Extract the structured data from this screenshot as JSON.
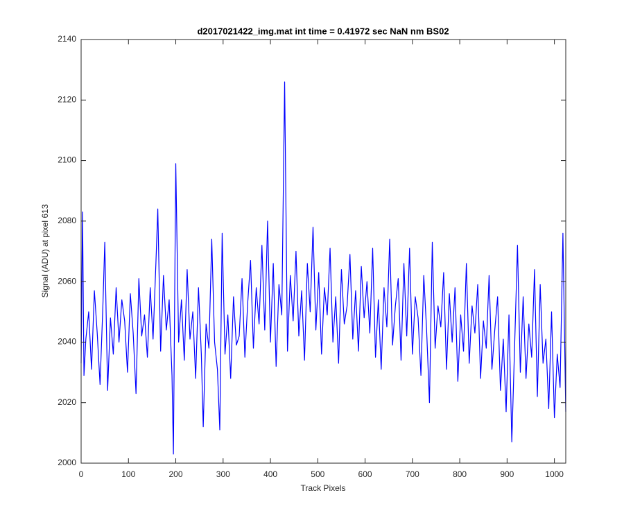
{
  "chart_data": {
    "type": "line",
    "title": "d2017021422_img.mat int time = 0.41972 sec  NaN nm BS02",
    "x_label": "Track Pixels",
    "y_label": "Signal (ADU) at pixel 613",
    "xlim": [
      0,
      1024
    ],
    "ylim": [
      2000,
      2140
    ],
    "xticks": [
      0,
      100,
      200,
      300,
      400,
      500,
      600,
      700,
      800,
      900,
      1000
    ],
    "yticks": [
      2000,
      2020,
      2040,
      2060,
      2080,
      2100,
      2120,
      2140
    ],
    "x": [
      0,
      3,
      6,
      10,
      16,
      22,
      28,
      34,
      40,
      46,
      50,
      56,
      62,
      68,
      74,
      80,
      86,
      92,
      98,
      104,
      110,
      116,
      122,
      128,
      134,
      140,
      146,
      152,
      158,
      162,
      168,
      174,
      180,
      186,
      192,
      195,
      200,
      206,
      212,
      218,
      224,
      230,
      236,
      242,
      248,
      254,
      258,
      264,
      270,
      276,
      282,
      288,
      293,
      298,
      304,
      310,
      316,
      322,
      328,
      334,
      340,
      346,
      352,
      358,
      364,
      370,
      376,
      382,
      388,
      394,
      400,
      406,
      412,
      418,
      424,
      430,
      436,
      442,
      448,
      454,
      460,
      466,
      472,
      478,
      484,
      490,
      496,
      502,
      508,
      514,
      520,
      526,
      532,
      538,
      544,
      550,
      556,
      562,
      568,
      574,
      580,
      586,
      592,
      598,
      604,
      610,
      616,
      622,
      628,
      634,
      640,
      646,
      652,
      658,
      664,
      670,
      676,
      682,
      688,
      694,
      700,
      706,
      712,
      718,
      724,
      730,
      736,
      742,
      748,
      754,
      760,
      766,
      772,
      778,
      784,
      790,
      796,
      802,
      808,
      814,
      820,
      826,
      832,
      838,
      844,
      850,
      856,
      862,
      868,
      874,
      880,
      886,
      892,
      898,
      904,
      910,
      916,
      922,
      928,
      934,
      940,
      946,
      952,
      958,
      964,
      970,
      976,
      982,
      988,
      994,
      1000,
      1006,
      1012,
      1018,
      1024
    ],
    "series": [
      {
        "name": "signal",
        "color": "#0000ff",
        "values": [
          2033,
          2083,
          2029,
          2041,
          2050,
          2031,
          2057,
          2043,
          2026,
          2052,
          2073,
          2024,
          2048,
          2036,
          2058,
          2040,
          2054,
          2047,
          2030,
          2056,
          2043,
          2023,
          2061,
          2042,
          2049,
          2035,
          2058,
          2041,
          2066,
          2084,
          2037,
          2062,
          2044,
          2054,
          2029,
          2003,
          2099,
          2040,
          2054,
          2034,
          2064,
          2041,
          2050,
          2028,
          2058,
          2036,
          2012,
          2046,
          2038,
          2074,
          2040,
          2031,
          2011,
          2076,
          2036,
          2049,
          2028,
          2055,
          2039,
          2042,
          2061,
          2035,
          2053,
          2067,
          2038,
          2058,
          2046,
          2072,
          2044,
          2080,
          2040,
          2066,
          2032,
          2059,
          2049,
          2126,
          2037,
          2062,
          2047,
          2070,
          2042,
          2057,
          2034,
          2066,
          2050,
          2078,
          2044,
          2063,
          2036,
          2058,
          2049,
          2071,
          2040,
          2055,
          2033,
          2064,
          2046,
          2052,
          2069,
          2041,
          2057,
          2037,
          2065,
          2048,
          2060,
          2043,
          2071,
          2035,
          2054,
          2031,
          2058,
          2045,
          2074,
          2039,
          2052,
          2061,
          2034,
          2066,
          2042,
          2071,
          2036,
          2055,
          2048,
          2029,
          2062,
          2044,
          2020,
          2073,
          2038,
          2052,
          2045,
          2063,
          2031,
          2056,
          2040,
          2058,
          2027,
          2049,
          2037,
          2066,
          2033,
          2052,
          2043,
          2059,
          2028,
          2047,
          2038,
          2062,
          2031,
          2044,
          2055,
          2024,
          2041,
          2017,
          2049,
          2007,
          2039,
          2072,
          2030,
          2055,
          2028,
          2046,
          2035,
          2064,
          2022,
          2059,
          2033,
          2041,
          2018,
          2050,
          2015,
          2036,
          2025,
          2076,
          2017
        ]
      }
    ]
  }
}
